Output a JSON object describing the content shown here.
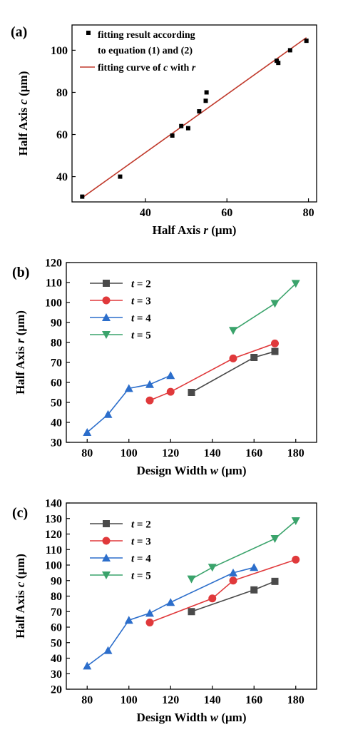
{
  "chart_data": [
    {
      "panel": "(a)",
      "type": "scatter",
      "xlabel": {
        "pre": "Half Axis ",
        "var": "r",
        "post": " (μm)"
      },
      "ylabel": {
        "pre": "Half Axis ",
        "var": "c",
        "post": " (μm)"
      },
      "xlim": [
        22,
        82
      ],
      "ylim": [
        28,
        112
      ],
      "xticks": [
        40,
        60,
        80
      ],
      "yticks": [
        40,
        60,
        80,
        100
      ],
      "legend_position": "top-left",
      "colors": {
        "points": "#000000",
        "fit": "#c0392b"
      },
      "series": [
        {
          "name": "fitting result according to equation (1) and (2)",
          "legend_lines": [
            "fitting result according",
            "to equation (1) and (2)"
          ],
          "kind": "points",
          "x": [
            24.5,
            33.8,
            46.6,
            48.8,
            50.5,
            53.2,
            54.8,
            55.0,
            72.2,
            72.6,
            75.5,
            79.5
          ],
          "y": [
            30.5,
            40.0,
            59.5,
            64.0,
            63.0,
            71.0,
            76.0,
            80.0,
            95.0,
            94.0,
            100.0,
            104.5
          ]
        },
        {
          "name": "fitting curve of c with r",
          "legend_lines": [
            {
              "pre": "fitting curve of ",
              "var": "c",
              "mid": " with ",
              "var2": "r"
            }
          ],
          "kind": "line",
          "x": [
            24.5,
            79.5
          ],
          "y": [
            30.0,
            106.0
          ]
        }
      ]
    },
    {
      "panel": "(b)",
      "type": "line",
      "xlabel": {
        "pre": "Design Width ",
        "var": "w",
        "post": " (μm)"
      },
      "ylabel": {
        "pre": "Half Axis ",
        "var": "r",
        "post": " (μm)"
      },
      "xlim": [
        70,
        190
      ],
      "ylim": [
        30,
        120
      ],
      "xticks": [
        80,
        100,
        120,
        140,
        160,
        180
      ],
      "yticks": [
        30,
        40,
        50,
        60,
        70,
        80,
        90,
        100,
        110,
        120
      ],
      "legend_position": "top-left",
      "series": [
        {
          "name": "t = 2",
          "label_var": "t",
          "label_rest": " = 2",
          "color": "#4a4a4a",
          "marker": "square",
          "x": [
            130,
            160,
            170
          ],
          "y": [
            55,
            72.5,
            75.5
          ]
        },
        {
          "name": "t = 3",
          "label_var": "t",
          "label_rest": " = 3",
          "color": "#e0393b",
          "marker": "circle",
          "x": [
            110,
            120,
            150,
            170
          ],
          "y": [
            51,
            55.3,
            72,
            79.5
          ]
        },
        {
          "name": "t = 4",
          "label_var": "t",
          "label_rest": " = 4",
          "color": "#2c6ecb",
          "marker": "triangle-up",
          "x": [
            80,
            90,
            100,
            110,
            120
          ],
          "y": [
            35,
            44,
            57,
            59,
            63.5
          ]
        },
        {
          "name": "t = 5",
          "label_var": "t",
          "label_rest": " = 5",
          "color": "#3aa36b",
          "marker": "triangle-down",
          "x": [
            150,
            170,
            180
          ],
          "y": [
            86,
            99.5,
            109.5
          ]
        }
      ]
    },
    {
      "panel": "(c)",
      "type": "line",
      "xlabel": {
        "pre": "Design Width ",
        "var": "w",
        "post": " (μm)"
      },
      "ylabel": {
        "pre": "Half Axis ",
        "var": "c",
        "post": " (μm)"
      },
      "xlim": [
        70,
        190
      ],
      "ylim": [
        20,
        140
      ],
      "xticks": [
        80,
        100,
        120,
        140,
        160,
        180
      ],
      "yticks": [
        20,
        30,
        40,
        50,
        60,
        70,
        80,
        90,
        100,
        110,
        120,
        130,
        140
      ],
      "legend_position": "top-left",
      "series": [
        {
          "name": "t = 2",
          "label_var": "t",
          "label_rest": " = 2",
          "color": "#4a4a4a",
          "marker": "square",
          "x": [
            130,
            160,
            170
          ],
          "y": [
            70,
            84,
            89.5
          ]
        },
        {
          "name": "t = 3",
          "label_var": "t",
          "label_rest": " = 3",
          "color": "#e0393b",
          "marker": "circle",
          "x": [
            110,
            140,
            150,
            180
          ],
          "y": [
            63,
            78.5,
            90,
            103.5
          ]
        },
        {
          "name": "t = 4",
          "label_var": "t",
          "label_rest": " = 4",
          "color": "#2c6ecb",
          "marker": "triangle-up",
          "x": [
            80,
            90,
            100,
            110,
            120,
            150,
            160
          ],
          "y": [
            35,
            45,
            64.5,
            69,
            76,
            95,
            98.5
          ]
        },
        {
          "name": "t = 5",
          "label_var": "t",
          "label_rest": " = 5",
          "color": "#3aa36b",
          "marker": "triangle-down",
          "x": [
            130,
            140,
            170,
            180
          ],
          "y": [
            91,
            98.5,
            117,
            128.5
          ]
        }
      ]
    }
  ]
}
